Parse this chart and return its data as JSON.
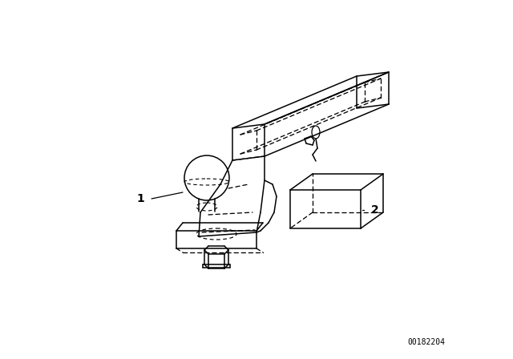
{
  "bg_color": "#ffffff",
  "line_color": "#000000",
  "label1": "1",
  "label2": "2",
  "part_number": "00182204",
  "figsize": [
    6.4,
    4.48
  ],
  "dpi": 100
}
